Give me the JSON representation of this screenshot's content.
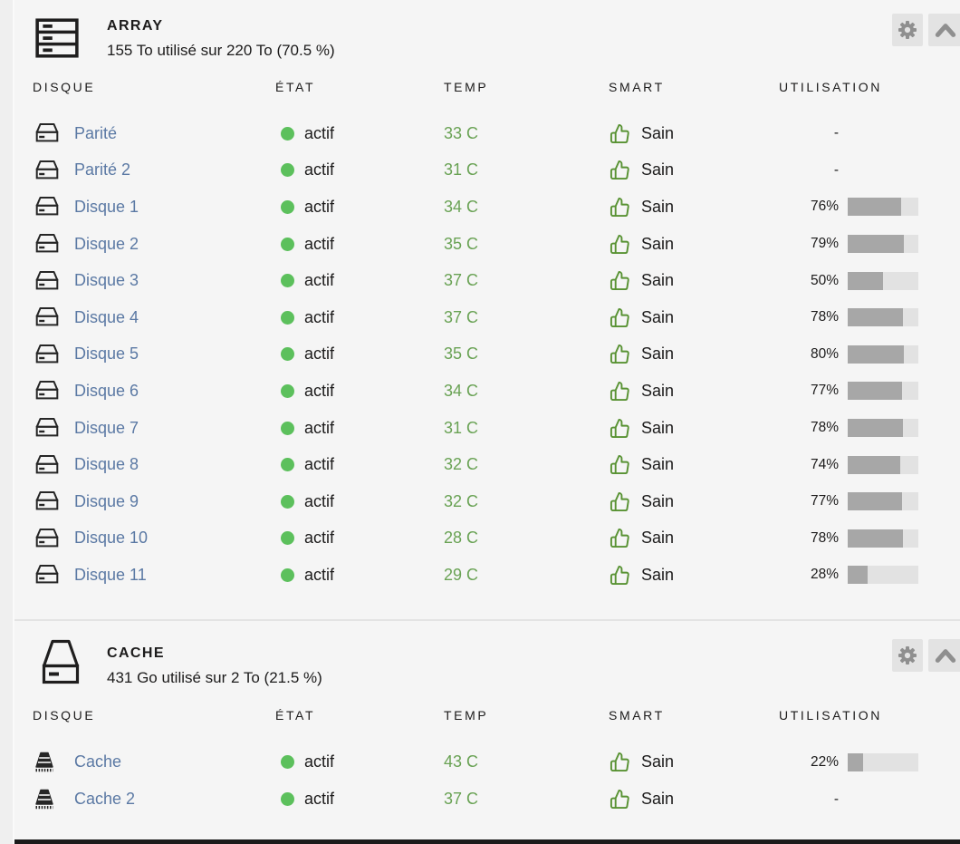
{
  "columns": [
    "DISQUE",
    "ÉTAT",
    "TEMP",
    "SMART",
    "UTILISATION"
  ],
  "array": {
    "title": "ARRAY",
    "subtitle": "155 To utilisé sur 220 To (70.5 %)",
    "icon": "server-stack-icon",
    "buttons": {
      "settings": "gear-icon",
      "collapse": "chevron-up-icon"
    },
    "rows": [
      {
        "icon": "hdd-icon",
        "name": "Parité",
        "status": "actif",
        "temp": "33 C",
        "smart": "Sain",
        "utilization": "-"
      },
      {
        "icon": "hdd-icon",
        "name": "Parité 2",
        "status": "actif",
        "temp": "31 C",
        "smart": "Sain",
        "utilization": "-"
      },
      {
        "icon": "hdd-icon",
        "name": "Disque 1",
        "status": "actif",
        "temp": "34 C",
        "smart": "Sain",
        "utilization": 76
      },
      {
        "icon": "hdd-icon",
        "name": "Disque 2",
        "status": "actif",
        "temp": "35 C",
        "smart": "Sain",
        "utilization": 79
      },
      {
        "icon": "hdd-icon",
        "name": "Disque 3",
        "status": "actif",
        "temp": "37 C",
        "smart": "Sain",
        "utilization": 50
      },
      {
        "icon": "hdd-icon",
        "name": "Disque 4",
        "status": "actif",
        "temp": "37 C",
        "smart": "Sain",
        "utilization": 78
      },
      {
        "icon": "hdd-icon",
        "name": "Disque 5",
        "status": "actif",
        "temp": "35 C",
        "smart": "Sain",
        "utilization": 80
      },
      {
        "icon": "hdd-icon",
        "name": "Disque 6",
        "status": "actif",
        "temp": "34 C",
        "smart": "Sain",
        "utilization": 77
      },
      {
        "icon": "hdd-icon",
        "name": "Disque 7",
        "status": "actif",
        "temp": "31 C",
        "smart": "Sain",
        "utilization": 78
      },
      {
        "icon": "hdd-icon",
        "name": "Disque 8",
        "status": "actif",
        "temp": "32 C",
        "smart": "Sain",
        "utilization": 74
      },
      {
        "icon": "hdd-icon",
        "name": "Disque 9",
        "status": "actif",
        "temp": "32 C",
        "smart": "Sain",
        "utilization": 77
      },
      {
        "icon": "hdd-icon",
        "name": "Disque 10",
        "status": "actif",
        "temp": "28 C",
        "smart": "Sain",
        "utilization": 78
      },
      {
        "icon": "hdd-icon",
        "name": "Disque 11",
        "status": "actif",
        "temp": "29 C",
        "smart": "Sain",
        "utilization": 28
      }
    ]
  },
  "cache": {
    "title": "CACHE",
    "subtitle": "431 Go utilisé sur 2 To (21.5 %)",
    "icon": "drive-icon",
    "buttons": {
      "settings": "gear-icon",
      "collapse": "chevron-up-icon"
    },
    "rows": [
      {
        "icon": "ssd-icon",
        "name": "Cache",
        "status": "actif",
        "temp": "43 C",
        "smart": "Sain",
        "utilization": 22
      },
      {
        "icon": "ssd-icon",
        "name": "Cache 2",
        "status": "actif",
        "temp": "37 C",
        "smart": "Sain",
        "utilization": "-"
      }
    ]
  },
  "colors": {
    "link": "#5b79a4",
    "temp_green": "#69a254",
    "status_dot_green": "#5cc05c",
    "smart_green": "#589233",
    "bar_fill": "#a7a7a7",
    "bar_track": "#e2e2e2",
    "panel_bg": "#f5f5f5",
    "page_bg": "#efefef",
    "text": "#1c1b1b",
    "button_bg": "#e3e3e3",
    "button_icon": "#8f8f8f"
  }
}
